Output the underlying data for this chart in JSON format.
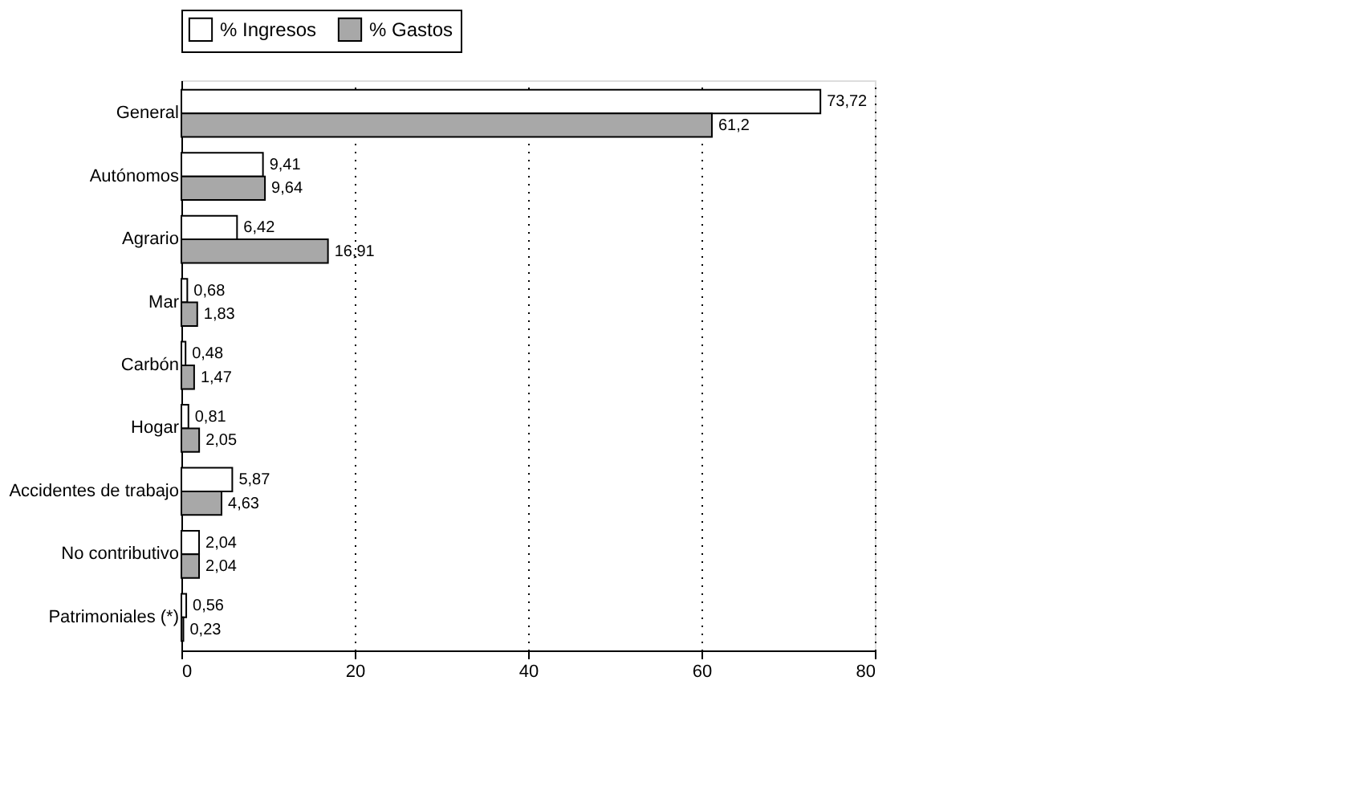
{
  "chart_data": {
    "type": "bar",
    "orientation": "horizontal",
    "categories": [
      "General",
      "Autónomos",
      "Agrario",
      "Mar",
      "Carbón",
      "Hogar",
      "Accidentes de trabajo",
      "No contributivo",
      "Patrimoniales (*)"
    ],
    "series": [
      {
        "name": "% Ingresos",
        "color": "#ffffff",
        "values": [
          73.72,
          9.41,
          6.42,
          0.68,
          0.48,
          0.81,
          5.87,
          2.04,
          0.56
        ],
        "value_labels": [
          "73,72",
          "9,41",
          "6,42",
          "0,68",
          "0,48",
          "0,81",
          "5,87",
          "2,04",
          "0,56"
        ]
      },
      {
        "name": "% Gastos",
        "color": "#a8a8a8",
        "values": [
          61.2,
          9.64,
          16.91,
          1.83,
          1.47,
          2.05,
          4.63,
          2.04,
          0.23
        ],
        "value_labels": [
          "61,2",
          "9,64",
          "16,91",
          "1,83",
          "1,47",
          "2,05",
          "4,63",
          "2,04",
          "0,23"
        ]
      }
    ],
    "xlim": [
      0,
      80
    ],
    "xticks": [
      0,
      20,
      40,
      60,
      80
    ],
    "grid": "x",
    "legend": "top"
  }
}
